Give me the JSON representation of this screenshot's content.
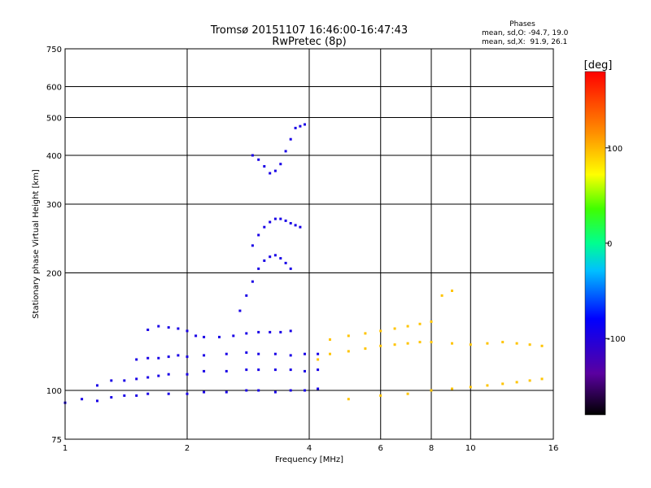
{
  "chart_data": {
    "type": "scatter",
    "title": "Tromsø 20151107 16:46:00-16:47:43",
    "subtitle": "RwPretec (8p)",
    "xlabel": "Frequency [MHz]",
    "ylabel": "Stationary phase Virtual Height [km]",
    "x_scale": "log",
    "y_scale": "log",
    "xlim": [
      1,
      16
    ],
    "ylim": [
      75,
      750
    ],
    "x_ticks": [
      1,
      2,
      4,
      6,
      8,
      10,
      16
    ],
    "y_ticks": [
      75,
      100,
      200,
      300,
      400,
      500,
      600,
      750
    ],
    "grid": true,
    "stats": {
      "title": "Phases",
      "line_o": "mean, sd,O: -94.7, 19.0",
      "line_x": "mean, sd,X:  91.9, 26.1"
    },
    "colorbar": {
      "label": "[deg]",
      "range": [
        -180,
        180
      ],
      "ticks": [
        -100,
        0,
        100
      ],
      "colormap": "rainbow-black-to-red"
    },
    "traces": [
      {
        "name": "",
        "phase": -95,
        "x": [
          1.0,
          1.1,
          1.2,
          1.3,
          1.4,
          1.5,
          1.6,
          1.8,
          2.0,
          2.2,
          2.5,
          2.8,
          3.0,
          3.3,
          3.6,
          3.9,
          4.2
        ],
        "y": [
          93,
          95,
          94,
          96,
          97,
          97,
          98,
          98,
          98,
          99,
          99,
          100,
          100,
          99,
          100,
          100,
          101
        ]
      },
      {
        "name": "",
        "phase": -95,
        "x": [
          1.2,
          1.3,
          1.4,
          1.5,
          1.6,
          1.7,
          1.8,
          2.0,
          2.2,
          2.5,
          2.8,
          3.0,
          3.3,
          3.6,
          3.9,
          4.2
        ],
        "y": [
          103,
          106,
          106,
          107,
          108,
          109,
          110,
          110,
          112,
          112,
          113,
          113,
          113,
          113,
          112,
          113
        ]
      },
      {
        "name": "",
        "phase": -95,
        "x": [
          1.5,
          1.6,
          1.7,
          1.8,
          1.9,
          2.0,
          2.2,
          2.5,
          2.8,
          3.0,
          3.3,
          3.6,
          3.9,
          4.2
        ],
        "y": [
          120,
          121,
          121,
          122,
          123,
          122,
          123,
          124,
          125,
          124,
          124,
          123,
          124,
          124
        ]
      },
      {
        "name": "",
        "phase": -95,
        "x": [
          1.6,
          1.7,
          1.8,
          1.9,
          2.0,
          2.1,
          2.2,
          2.4,
          2.6,
          2.8,
          3.0,
          3.2,
          3.4,
          3.6
        ],
        "y": [
          143,
          146,
          145,
          144,
          142,
          138,
          137,
          137,
          138,
          140,
          141,
          141,
          141,
          142
        ]
      },
      {
        "name": "",
        "phase": -95,
        "x": [
          2.7,
          2.8,
          2.9,
          3.0,
          3.1,
          3.2,
          3.3,
          3.4,
          3.5,
          3.6
        ],
        "y": [
          160,
          175,
          190,
          205,
          215,
          220,
          222,
          218,
          212,
          205
        ]
      },
      {
        "name": "",
        "phase": -95,
        "x": [
          2.9,
          3.0,
          3.1,
          3.2,
          3.3,
          3.4,
          3.5,
          3.6,
          3.7,
          3.8
        ],
        "y": [
          235,
          250,
          262,
          270,
          275,
          275,
          272,
          268,
          265,
          262
        ]
      },
      {
        "name": "",
        "phase": -95,
        "x": [
          2.9,
          3.0,
          3.1,
          3.2,
          3.3,
          3.4,
          3.5,
          3.6,
          3.7,
          3.8,
          3.9
        ],
        "y": [
          400,
          390,
          375,
          360,
          365,
          380,
          410,
          440,
          470,
          475,
          480
        ]
      },
      {
        "name": "",
        "phase": 95,
        "x": [
          4.2,
          4.5,
          5.0,
          5.5,
          6.0,
          6.5,
          7.0,
          7.5,
          8.0,
          9.0,
          10.0,
          11.0,
          12.0,
          13.0,
          14.0,
          15.0
        ],
        "y": [
          120,
          124,
          126,
          128,
          130,
          131,
          132,
          133,
          133,
          132,
          131,
          132,
          133,
          132,
          131,
          130
        ]
      },
      {
        "name": "",
        "phase": 95,
        "x": [
          4.5,
          5.0,
          5.5,
          6.0,
          6.5,
          7.0,
          7.5,
          8.0,
          8.5,
          9.0
        ],
        "y": [
          135,
          138,
          140,
          142,
          144,
          146,
          148,
          150,
          175,
          180
        ]
      },
      {
        "name": "",
        "phase": 95,
        "x": [
          5.0,
          6.0,
          7.0,
          8.0,
          9.0,
          10.0,
          11.0,
          12.0,
          13.0,
          14.0,
          15.0
        ],
        "y": [
          95,
          97,
          98,
          100,
          101,
          102,
          103,
          104,
          105,
          106,
          107
        ]
      }
    ]
  }
}
